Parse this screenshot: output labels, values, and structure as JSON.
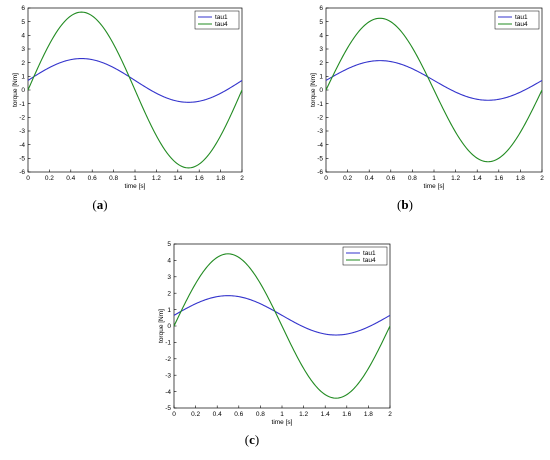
{
  "chart_data": [
    {
      "panel": "a",
      "caption_letter": "a",
      "type": "line",
      "xlabel": "time [s]",
      "ylabel": "torque [Nm]",
      "xlim": [
        0,
        2
      ],
      "ylim": [
        -6,
        6
      ],
      "xticks": [
        0,
        0.2,
        0.4,
        0.6,
        0.8,
        1,
        1.2,
        1.4,
        1.6,
        1.8,
        2
      ],
      "yticks": [
        -6,
        -5,
        -4,
        -3,
        -2,
        -1,
        0,
        1,
        2,
        3,
        4,
        5,
        6
      ],
      "grid": false,
      "legend_position": "top-right",
      "series": [
        {
          "name": "tau1",
          "color": "#3333cc",
          "function": "sine",
          "offset": 0.7,
          "amplitude": 1.6,
          "period": 2
        },
        {
          "name": "tau4",
          "color": "#228B22",
          "function": "sine",
          "offset": 0,
          "amplitude": 5.7,
          "period": 2
        }
      ]
    },
    {
      "panel": "b",
      "caption_letter": "b",
      "type": "line",
      "xlabel": "time [s]",
      "ylabel": "torque [Nm]",
      "xlim": [
        0,
        2
      ],
      "ylim": [
        -6,
        6
      ],
      "xticks": [
        0,
        0.2,
        0.4,
        0.6,
        0.8,
        1,
        1.2,
        1.4,
        1.6,
        1.8,
        2
      ],
      "yticks": [
        -6,
        -5,
        -4,
        -3,
        -2,
        -1,
        0,
        1,
        2,
        3,
        4,
        5,
        6
      ],
      "grid": false,
      "legend_position": "top-right",
      "series": [
        {
          "name": "tau1",
          "color": "#3333cc",
          "function": "sine",
          "offset": 0.7,
          "amplitude": 1.45,
          "period": 2
        },
        {
          "name": "tau4",
          "color": "#228B22",
          "function": "sine",
          "offset": 0,
          "amplitude": 5.25,
          "period": 2
        }
      ]
    },
    {
      "panel": "c",
      "caption_letter": "c",
      "type": "line",
      "xlabel": "time [s]",
      "ylabel": "torque [Nm]",
      "xlim": [
        0,
        2
      ],
      "ylim": [
        -5,
        5
      ],
      "xticks": [
        0,
        0.2,
        0.4,
        0.6,
        0.8,
        1,
        1.2,
        1.4,
        1.6,
        1.8,
        2
      ],
      "yticks": [
        -5,
        -4,
        -3,
        -2,
        -1,
        0,
        1,
        2,
        3,
        4,
        5
      ],
      "grid": false,
      "legend_position": "top-right",
      "series": [
        {
          "name": "tau1",
          "color": "#3333cc",
          "function": "sine",
          "offset": 0.65,
          "amplitude": 1.2,
          "period": 2
        },
        {
          "name": "tau4",
          "color": "#228B22",
          "function": "sine",
          "offset": 0,
          "amplitude": 4.4,
          "period": 2
        }
      ]
    }
  ]
}
